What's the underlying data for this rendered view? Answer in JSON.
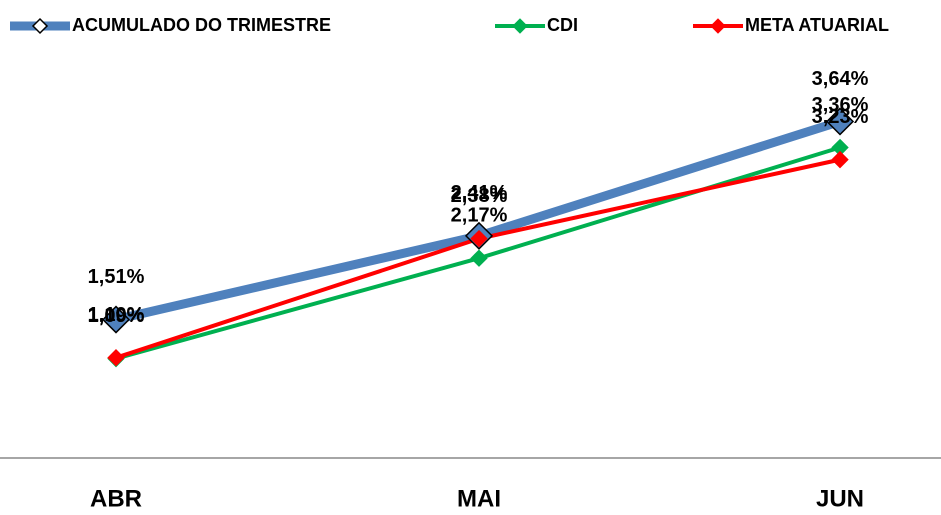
{
  "chart_data": {
    "type": "line",
    "categories": [
      "ABR",
      "MAI",
      "JUN"
    ],
    "series": [
      {
        "name": "ACUMULADO DO TRIMESTRE",
        "color": "#4f81bd",
        "values": [
          1.51,
          2.41,
          3.64
        ],
        "value_labels": [
          "1,51%",
          "2,41%",
          "3,64%"
        ]
      },
      {
        "name": "CDI",
        "color": "#00b050",
        "values": [
          1.09,
          2.17,
          3.36
        ],
        "value_labels": [
          "1,09%",
          "2,17%",
          "3,36%"
        ]
      },
      {
        "name": "META ATUARIAL",
        "color": "#ff0000",
        "values": [
          1.1,
          2.38,
          3.23
        ],
        "value_labels": [
          "1,10%",
          "2,38%",
          "3,23%"
        ]
      }
    ],
    "ylim": [
      0,
      4.5
    ]
  }
}
